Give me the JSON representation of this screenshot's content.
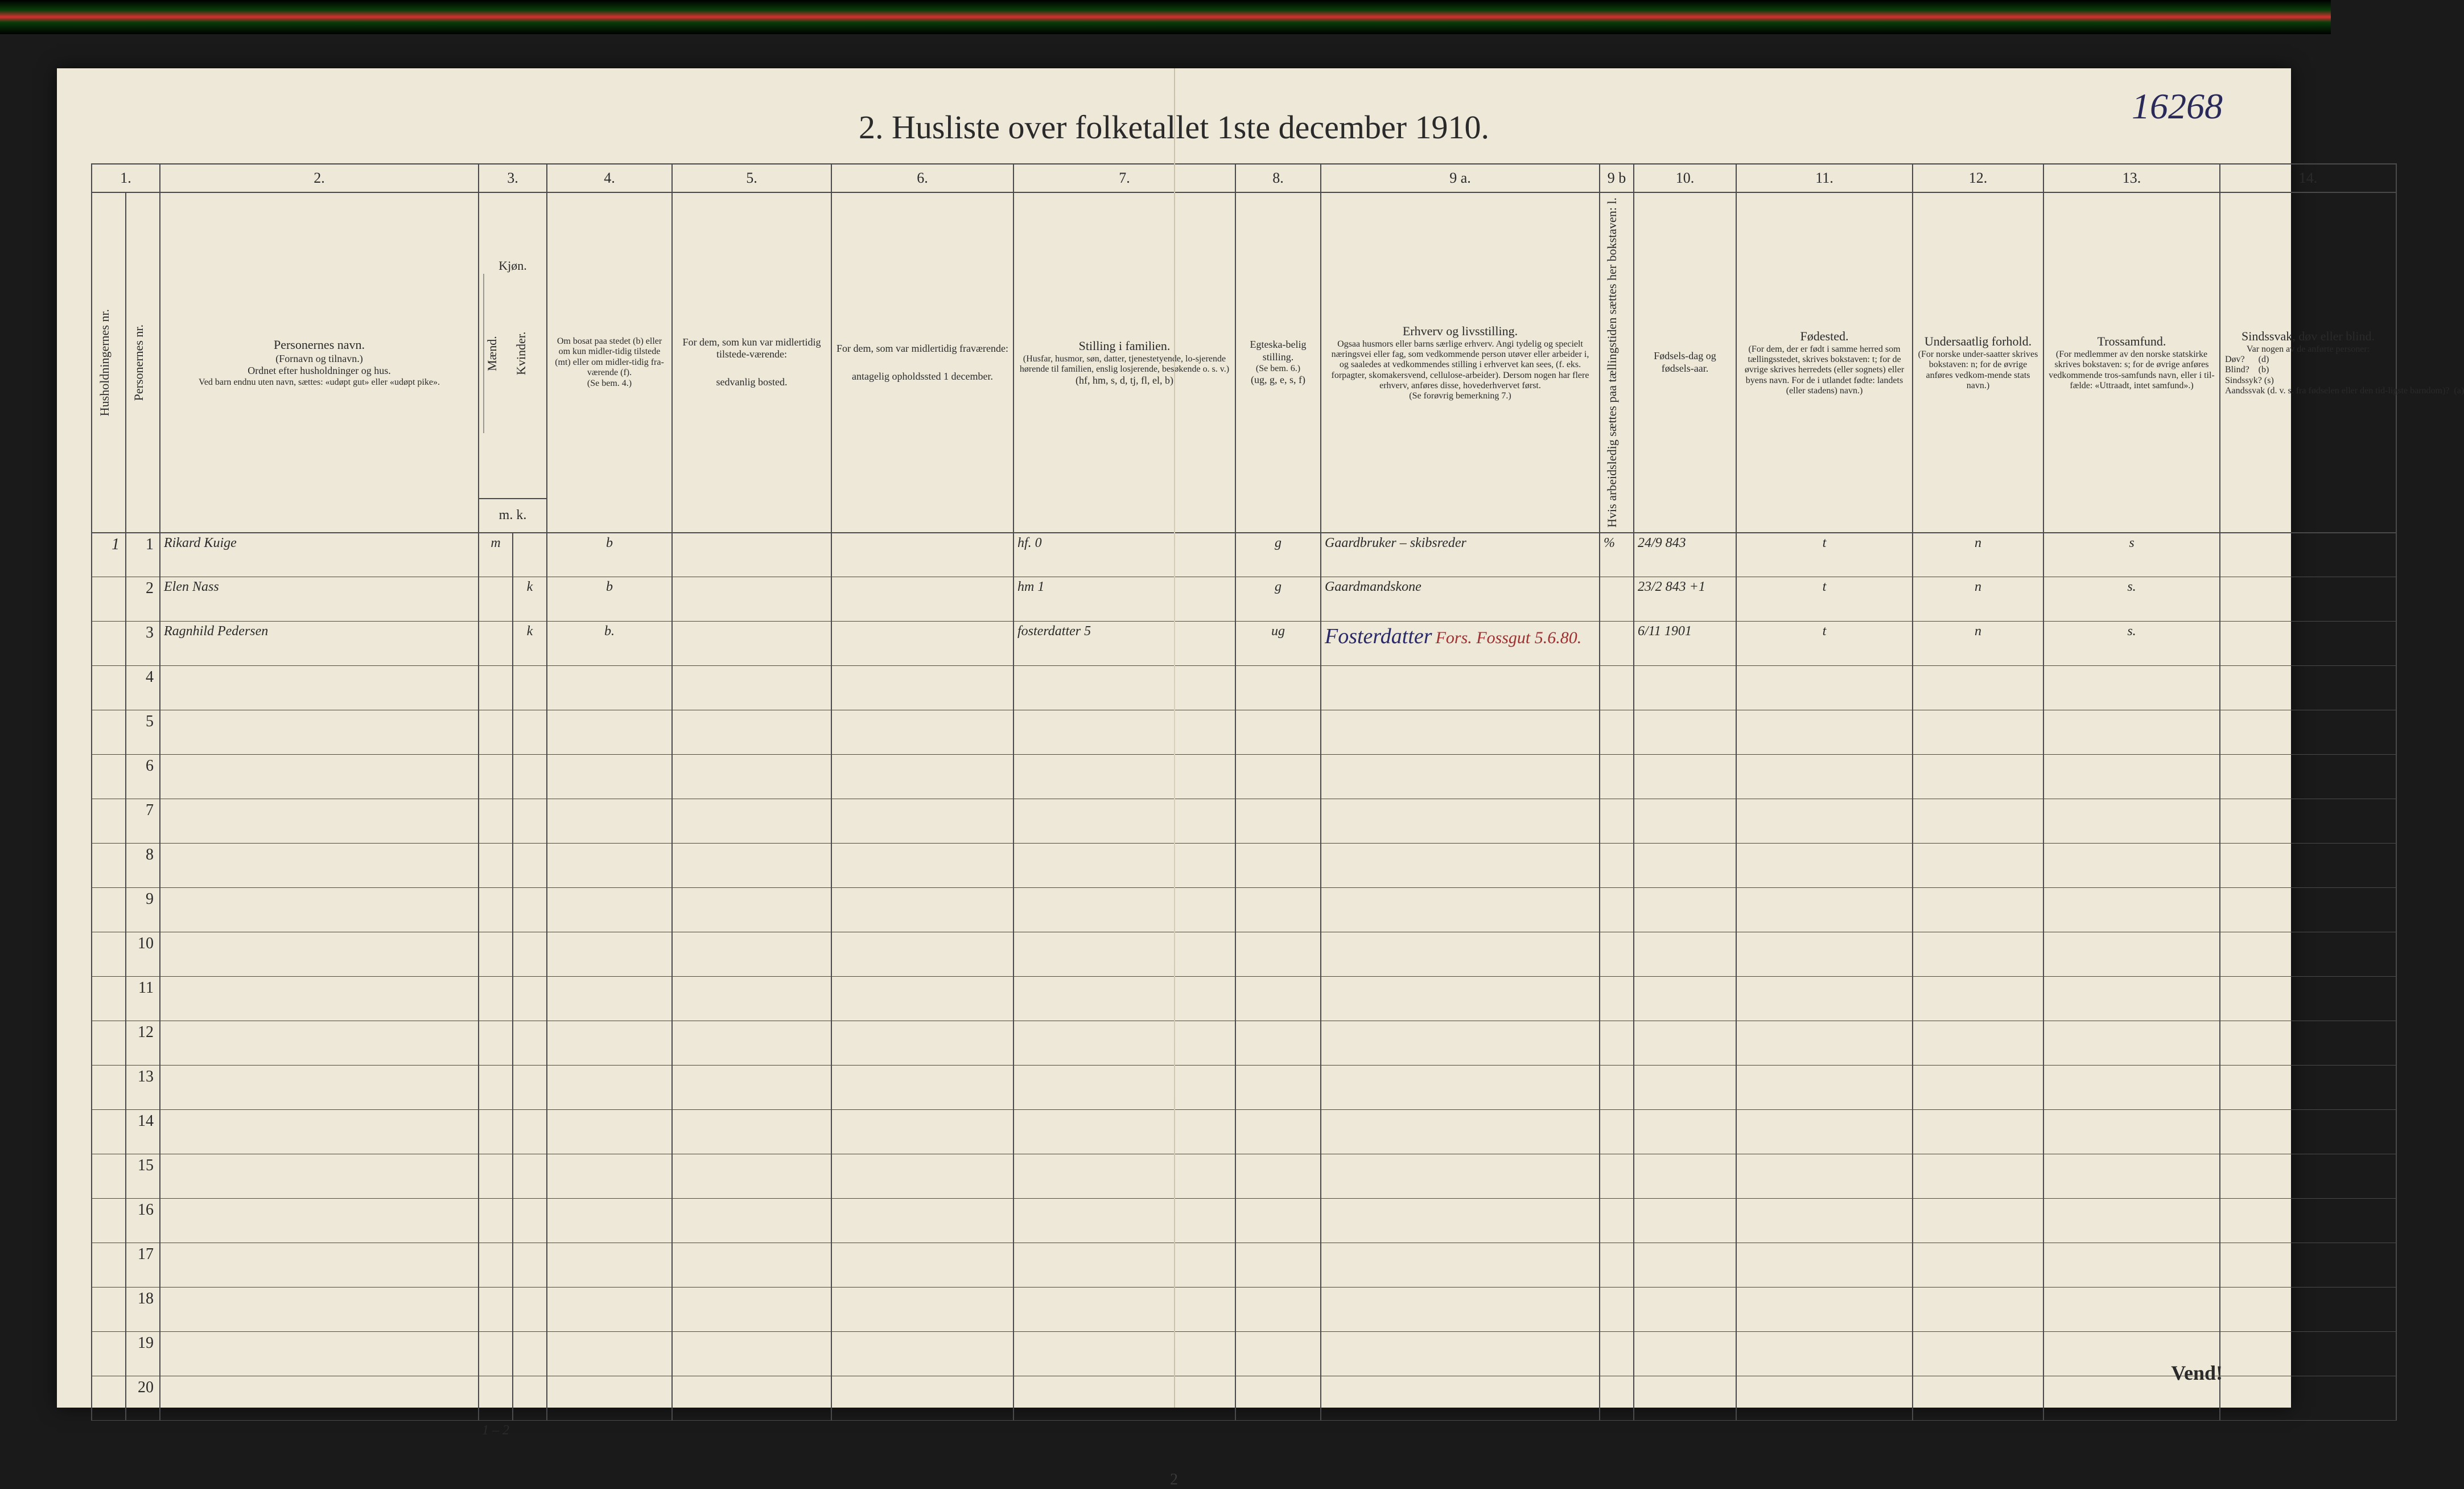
{
  "document_id_handwritten": "16268",
  "title": "2.  Husliste over folketallet 1ste december 1910.",
  "page_number_bottom": "2",
  "turn_over": "Vend!",
  "column_numbers": [
    "1.",
    "2.",
    "3.",
    "4.",
    "5.",
    "6.",
    "7.",
    "8.",
    "9 a.",
    "9 b",
    "10.",
    "11.",
    "12.",
    "13.",
    "14."
  ],
  "headers": {
    "col1a": "Husholdningernes nr.",
    "col1b": "Personernes nr.",
    "col2_title": "Personernes navn.",
    "col2_sub1": "(Fornavn og tilnavn.)",
    "col2_sub2": "Ordnet efter husholdninger og hus.",
    "col2_sub3": "Ved barn endnu uten navn, sættes: «udøpt gut» eller «udøpt pike».",
    "col3_title": "Kjøn.",
    "col3_m": "Mænd.",
    "col3_k": "Kvinder.",
    "col3_mk": "m.  k.",
    "col4_l1": "Om bosat paa stedet (b) eller om kun midler-tidig tilstede (mt) eller om midler-tidig fra-værende (f).",
    "col4_l2": "(Se bem. 4.)",
    "col5_l1": "For dem, som kun var midlertidig tilstede-værende:",
    "col5_l2": "sedvanlig bosted.",
    "col6_l1": "For dem, som var midlertidig fraværende:",
    "col6_l2": "antagelig opholdssted 1 december.",
    "col7_title": "Stilling i familien.",
    "col7_sub": "(Husfar, husmor, søn, datter, tjenestetyende, lo-sjerende hørende til familien, enslig losjerende, besøkende o. s. v.)",
    "col7_codes": "(hf, hm, s, d, tj, fl, el, b)",
    "col8_title": "Egteska-belig stilling.",
    "col8_sub": "(Se bem. 6.)",
    "col8_codes": "(ug, g, e, s, f)",
    "col9a_title": "Erhverv og livsstilling.",
    "col9a_sub": "Ogsaa husmors eller barns særlige erhverv. Angi tydelig og specielt næringsvei eller fag, som vedkommende person utøver eller arbeider i, og saaledes at vedkommendes stilling i erhvervet kan sees, (f. eks. forpagter, skomakersvend, cellulose-arbeider). Dersom nogen har flere erhverv, anføres disse, hovederhvervet først.",
    "col9a_note": "(Se forøvrig bemerkning 7.)",
    "col9b": "Hvis arbeidsledig sættes paa tællingstiden sættes her bokstaven: l.",
    "col10_l1": "Fødsels-dag og fødsels-aar.",
    "col11_title": "Fødested.",
    "col11_sub": "(For dem, der er født i samme herred som tællingsstedet, skrives bokstaven: t; for de øvrige skrives herredets (eller sognets) eller byens navn. For de i utlandet fødte: landets (eller stadens) navn.)",
    "col12_title": "Undersaatlig forhold.",
    "col12_sub": "(For norske under-saatter skrives bokstaven: n; for de øvrige anføres vedkom-mende stats navn.)",
    "col13_title": "Trossamfund.",
    "col13_sub": "(For medlemmer av den norske statskirke skrives bokstaven: s; for de øvrige anføres vedkommende tros-samfunds navn, eller i til-fælde: «Uttraadt, intet samfund».)",
    "col14_title": "Sindssvak, døv eller blind.",
    "col14_sub": "Var nogen av de anførte personer:",
    "col14_opts": "Døv?      (d)\nBlind?    (b)\nSindssyk? (s)\nAandssvak (d. v. s. fra fødselen eller den tid-ligste barndom)?  (a)"
  },
  "rows": [
    {
      "hh": "1",
      "pn": "1",
      "name": "Rikard Kuige",
      "sex_m": "m",
      "sex_k": "",
      "residence": "b",
      "c5": "",
      "c6": "",
      "famrole": "hf.       0",
      "marital": "g",
      "occupation": "Gaardbruker – skibsreder",
      "c9b": "%",
      "birth": "24/9 843",
      "birthplace": "t",
      "nat": "n",
      "faith": "s",
      "c14": ""
    },
    {
      "hh": "",
      "pn": "2",
      "name": "Elen Nass",
      "sex_m": "",
      "sex_k": "k",
      "residence": "b",
      "c5": "",
      "c6": "",
      "famrole": "hm       1",
      "marital": "g",
      "occupation": "Gaardmandskone",
      "c9b": "",
      "birth": "23/2 843 +1",
      "birthplace": "t",
      "nat": "n",
      "faith": "s.",
      "c14": ""
    },
    {
      "hh": "",
      "pn": "3",
      "name": "Ragnhild Pedersen",
      "sex_m": "",
      "sex_k": "k",
      "residence": "b.",
      "c5": "",
      "c6": "",
      "famrole": "fosterdatter 5",
      "marital": "ug",
      "occupation": "Fosterdatter",
      "occupation_red": "Fors. Fossgut   5.6.80.",
      "c9b": "",
      "birth": "6/11 1901",
      "birthplace": "t",
      "nat": "n",
      "faith": "s.",
      "c14": ""
    }
  ],
  "empty_row_numbers": [
    "4",
    "5",
    "6",
    "7",
    "8",
    "9",
    "10",
    "11",
    "12",
    "13",
    "14",
    "15",
    "16",
    "17",
    "18",
    "19",
    "20"
  ],
  "tally": "1 – 2"
}
